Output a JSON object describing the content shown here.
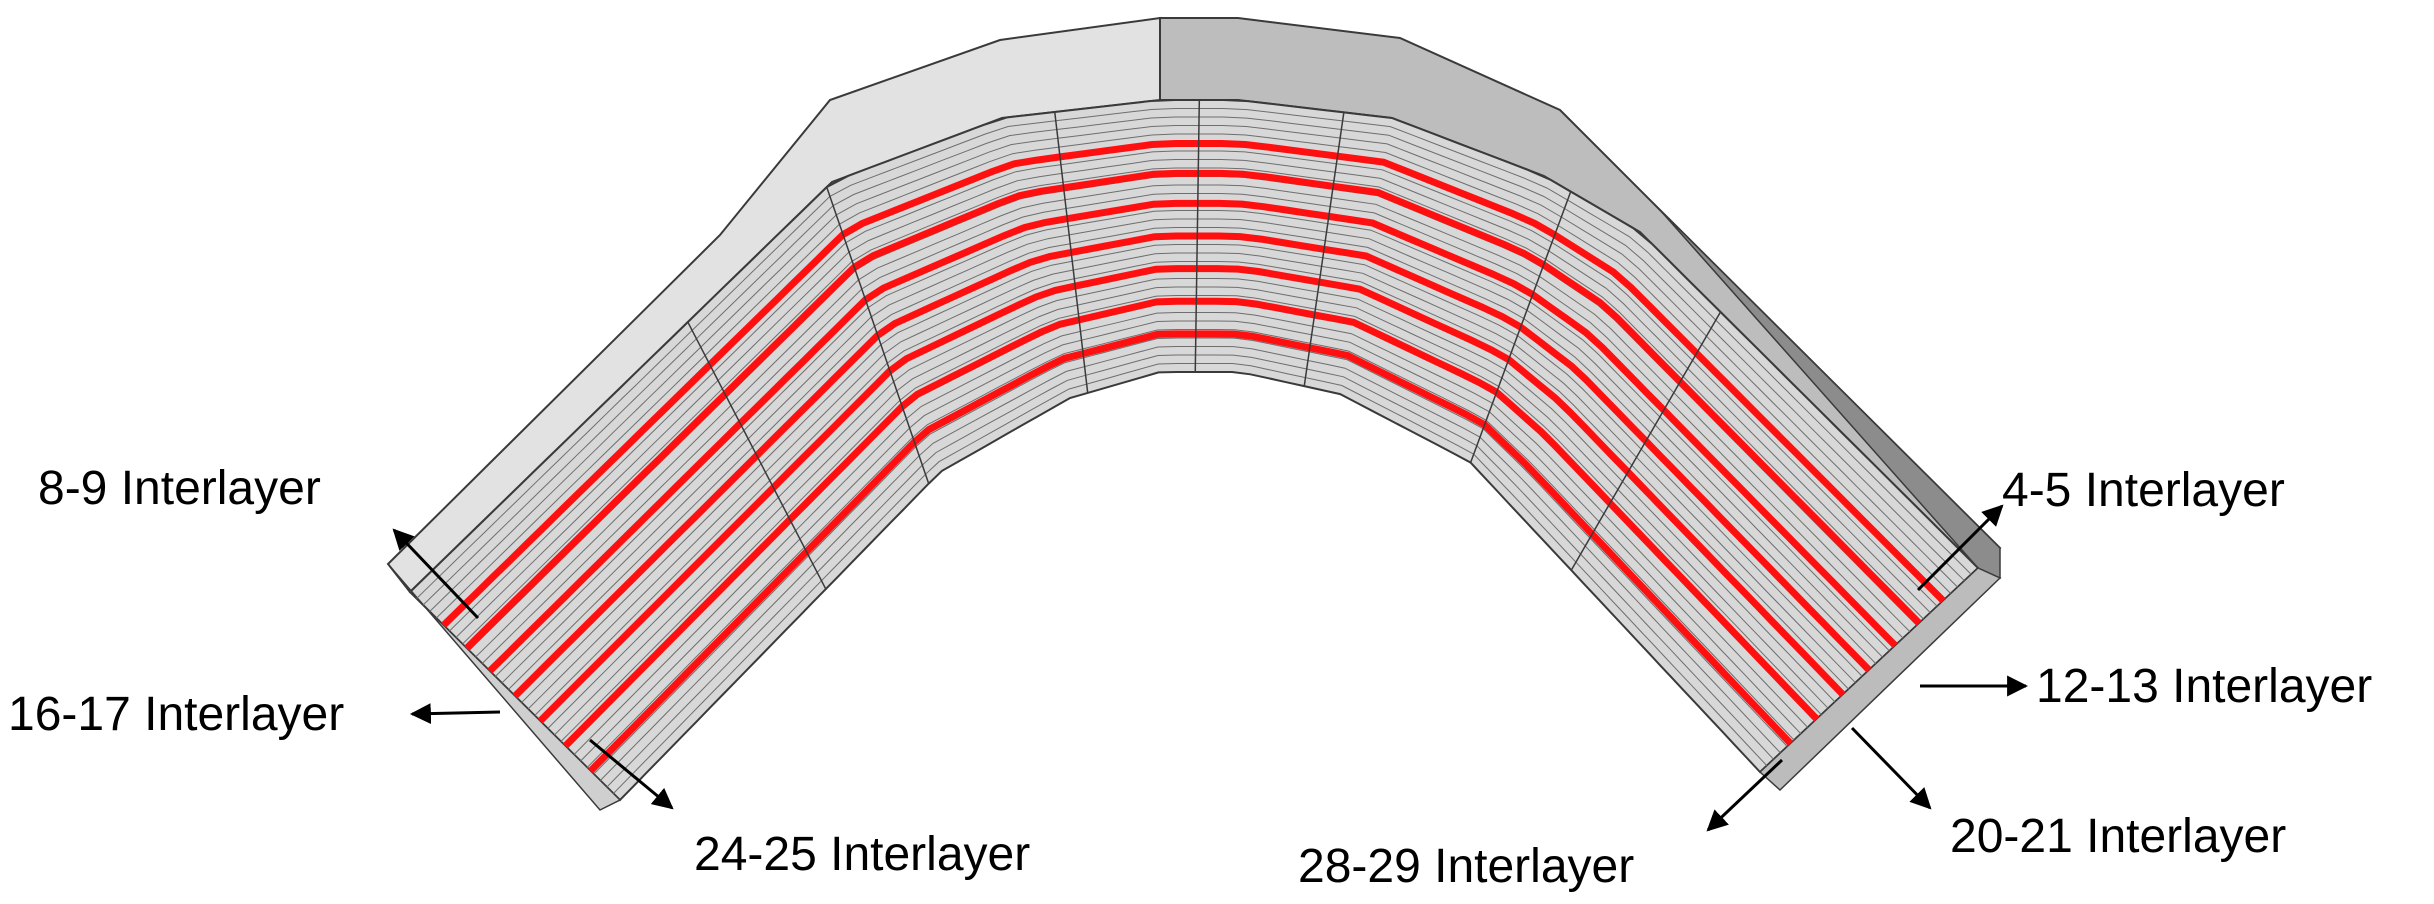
{
  "colors": {
    "background": "#ffffff",
    "interlayer": "#ff1010",
    "ply": "#d8d8d8",
    "ply_line": "#6e6e6e",
    "edge": "#3a3a3a",
    "top_face_left": "#e2e2e2",
    "top_face_right": "#bdbdbd",
    "side_face_right": "#8c8c8c",
    "arrow": "#000000"
  },
  "diagram": {
    "subject": "curved laminate with interlayers",
    "labels": {
      "l_8_9": "8-9 Interlayer",
      "l_4_5": "4-5 Interlayer",
      "l_16_17": "16-17 Interlayer",
      "l_12_13": "12-13 Interlayer",
      "l_24_25": "24-25 Interlayer",
      "l_20_21": "20-21 Interlayer",
      "l_28_29": "28-29 Interlayer"
    }
  }
}
